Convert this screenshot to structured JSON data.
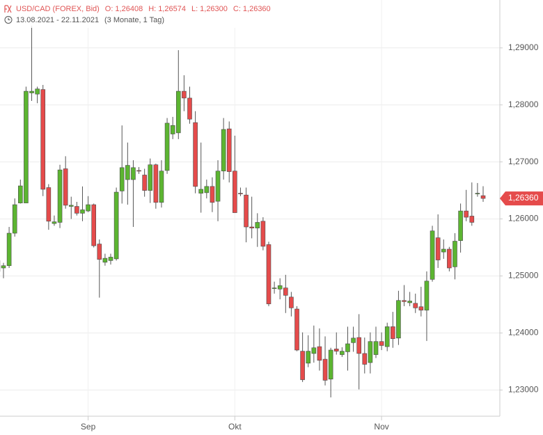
{
  "chart_data": {
    "type": "candlestick",
    "title": "USD/CAD (FOREX, Bid)",
    "quote": [
      {
        "name": "O:",
        "value": 1.26408,
        "label": "1,26408"
      },
      {
        "name": "H:",
        "value": 1.26574,
        "label": "1,26574"
      },
      {
        "name": "L:",
        "value": 1.263,
        "label": "1,26300"
      },
      {
        "name": "C:",
        "value": 1.2636,
        "label": "1,26360"
      }
    ],
    "date_range": "13.08.2021 - 22.11.2021",
    "period": "(3 Monate, 1 Tag)",
    "last_price": {
      "value": 1.2636,
      "label": "1,26360"
    },
    "categories": [
      null,
      null,
      null,
      null,
      null,
      null,
      null,
      null,
      null,
      null,
      null,
      null,
      null,
      null,
      null,
      null,
      "Sep",
      null,
      null,
      null,
      null,
      null,
      null,
      null,
      null,
      null,
      null,
      null,
      null,
      null,
      null,
      null,
      null,
      null,
      null,
      null,
      null,
      null,
      null,
      null,
      null,
      null,
      "Okt",
      null,
      null,
      null,
      null,
      null,
      null,
      null,
      null,
      null,
      null,
      null,
      null,
      null,
      null,
      null,
      null,
      null,
      null,
      null,
      null,
      null,
      null,
      null,
      null,
      null,
      "Nov",
      null,
      null,
      null,
      null,
      null,
      null,
      null,
      null,
      null,
      null,
      null,
      null,
      null,
      null,
      null,
      null,
      null,
      null
    ],
    "series": [
      {
        "open": [
          1.2527,
          1.2514,
          1.2518,
          1.2575,
          1.2628,
          1.2628,
          1.2821,
          1.2819,
          1.2827,
          1.2655,
          1.2592,
          1.2594,
          1.2688,
          1.2622,
          1.2622,
          1.261,
          1.2614,
          1.2625,
          1.2556,
          1.2524,
          1.2527,
          1.253,
          1.2649,
          1.2669,
          1.2669,
          1.2685,
          1.2677,
          1.265,
          1.2695,
          1.2629,
          1.2685,
          1.2749,
          1.2751,
          1.2824,
          1.2812,
          1.2769,
          1.2645,
          1.2646,
          1.2657,
          1.2631,
          1.2684,
          1.2758,
          1.2684,
          1.2645,
          1.2642,
          1.2586,
          1.2584,
          1.2596,
          1.2555,
          1.2478,
          1.2477,
          1.2479,
          1.2463,
          1.2442,
          1.2368,
          1.2347,
          1.2364,
          1.2376,
          1.2354,
          1.2319,
          1.2372,
          1.2362,
          1.2367,
          1.2383,
          1.2392,
          1.2364,
          1.2348,
          1.2362,
          1.2385,
          1.2376,
          1.2411,
          1.2391,
          1.2457,
          1.2453,
          1.2452,
          1.2446,
          1.244,
          1.2494,
          1.2567,
          1.2542,
          1.2547,
          1.2516,
          1.2562,
          1.2614,
          1.2605,
          1.2644,
          1.26408
        ],
        "high": [
          1.253,
          1.2523,
          1.2586,
          1.2636,
          1.2669,
          1.2832,
          1.2939,
          1.2832,
          1.2835,
          1.2661,
          1.2606,
          1.2695,
          1.271,
          1.2639,
          1.263,
          1.2657,
          1.264,
          1.2627,
          1.2564,
          1.2539,
          1.2539,
          1.2655,
          1.2764,
          1.2734,
          1.2703,
          1.2691,
          1.2688,
          1.2706,
          1.2697,
          1.2703,
          1.2777,
          1.2779,
          1.2896,
          1.2852,
          1.2832,
          1.2789,
          1.2734,
          1.2669,
          1.2673,
          1.2703,
          1.2777,
          1.2771,
          1.2746,
          1.2655,
          1.2655,
          1.2639,
          1.261,
          1.2603,
          1.256,
          1.249,
          1.2496,
          1.2502,
          1.2472,
          1.2447,
          1.2401,
          1.2396,
          1.2413,
          1.2408,
          1.2394,
          1.2374,
          1.2401,
          1.2375,
          1.2411,
          1.2411,
          1.2433,
          1.2392,
          1.2401,
          1.2411,
          1.2401,
          1.2418,
          1.2437,
          1.2474,
          1.2484,
          1.2472,
          1.2469,
          1.2481,
          1.2508,
          1.2588,
          1.2608,
          1.2564,
          1.2551,
          1.2575,
          1.2627,
          1.2651,
          1.2664,
          1.2663,
          1.26574
        ],
        "low": [
          1.2496,
          1.2496,
          1.2514,
          1.2569,
          1.2627,
          1.2628,
          1.2807,
          1.2803,
          1.264,
          1.2581,
          1.2588,
          1.2584,
          1.2618,
          1.26,
          1.2606,
          1.2596,
          1.2612,
          1.255,
          1.2462,
          1.2518,
          1.252,
          1.2527,
          1.2627,
          1.2625,
          1.2586,
          1.2679,
          1.2639,
          1.2628,
          1.2618,
          1.262,
          1.2679,
          1.274,
          1.274,
          1.2789,
          1.2767,
          1.2645,
          1.2611,
          1.2636,
          1.2612,
          1.2596,
          1.2669,
          1.2664,
          1.2611,
          1.264,
          1.2559,
          1.2566,
          1.2551,
          1.2545,
          1.2447,
          1.2469,
          1.2459,
          1.2435,
          1.2429,
          1.2368,
          1.2314,
          1.234,
          1.2348,
          1.2334,
          1.2308,
          1.2287,
          1.2362,
          1.2358,
          1.2334,
          1.2367,
          1.2301,
          1.2329,
          1.2329,
          1.2356,
          1.237,
          1.2368,
          1.2374,
          1.2379,
          1.2447,
          1.2447,
          1.2435,
          1.2429,
          1.2386,
          1.249,
          1.2514,
          1.253,
          1.2508,
          1.2494,
          1.2541,
          1.2596,
          1.2588,
          1.2639,
          1.263
        ],
        "close": [
          1.2508,
          1.2518,
          1.2575,
          1.2625,
          1.2658,
          1.2824,
          1.2824,
          1.2828,
          1.2652,
          1.2596,
          1.2595,
          1.2686,
          1.2624,
          1.2624,
          1.261,
          1.2616,
          1.2625,
          1.2553,
          1.2529,
          1.2531,
          1.2533,
          1.2647,
          1.269,
          1.2694,
          1.269,
          1.2684,
          1.265,
          1.2695,
          1.2629,
          1.2684,
          1.2768,
          1.2764,
          1.2824,
          1.2812,
          1.2775,
          1.2657,
          1.2652,
          1.2657,
          1.2629,
          1.2684,
          1.2757,
          1.2683,
          1.2611,
          1.2644,
          1.2586,
          1.2584,
          1.2594,
          1.2552,
          1.2451,
          1.2479,
          1.2483,
          1.2466,
          1.2444,
          1.237,
          1.2318,
          1.2368,
          1.2374,
          1.2352,
          1.2317,
          1.237,
          1.2368,
          1.2368,
          1.2381,
          1.2391,
          1.2364,
          1.2345,
          1.2385,
          1.2385,
          1.2378,
          1.2411,
          1.239,
          1.2457,
          1.2455,
          1.2456,
          1.2444,
          1.244,
          1.2491,
          1.2579,
          1.2528,
          1.2547,
          1.2514,
          1.2561,
          1.2614,
          1.2603,
          1.2594,
          1.2645,
          1.2636
        ]
      }
    ],
    "up_color": "#5cb531",
    "down_color": "#e54b4b",
    "title_color": "#e05555",
    "ylim": [
      1.2254,
      1.2984
    ],
    "yticks": [
      {
        "value": 1.23,
        "label": "1,23000"
      },
      {
        "value": 1.24,
        "label": "1,24000"
      },
      {
        "value": 1.25,
        "label": "1,25000"
      },
      {
        "value": 1.26,
        "label": "1,26000"
      },
      {
        "value": 1.27,
        "label": "1,27000"
      },
      {
        "value": 1.28,
        "label": "1,28000"
      },
      {
        "value": 1.29,
        "label": "1,29000"
      }
    ],
    "grid": true
  }
}
